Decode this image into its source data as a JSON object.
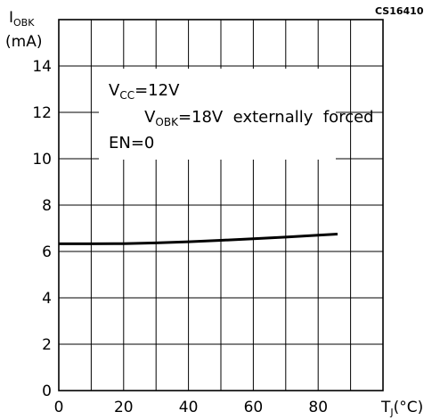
{
  "figure_code": "CS16410",
  "chart_data": {
    "type": "line",
    "ylabel": {
      "main": "I",
      "sub": "OBK",
      "unit": "(mA)"
    },
    "xlabel": {
      "main": "T",
      "sub": "J",
      "unit": "(°C)"
    },
    "xlim": [
      0,
      100
    ],
    "ylim": [
      0,
      16
    ],
    "x_ticks": [
      "0",
      "20",
      "40",
      "60",
      "80"
    ],
    "y_ticks": [
      "0",
      "2",
      "4",
      "6",
      "8",
      "10",
      "12",
      "14"
    ],
    "grid": true,
    "annotations": [
      {
        "main": "V",
        "sub": "CC",
        "rest": "=12V"
      },
      {
        "main": "V",
        "sub": "OBK",
        "rest": "=18V  externally  forced"
      },
      {
        "main": "EN=0",
        "sub": "",
        "rest": ""
      }
    ],
    "series": [
      {
        "x": [
          0,
          10,
          20,
          30,
          40,
          50,
          60,
          70,
          80,
          86
        ],
        "y": [
          6.33,
          6.33,
          6.34,
          6.37,
          6.42,
          6.48,
          6.55,
          6.62,
          6.7,
          6.75
        ]
      }
    ]
  }
}
